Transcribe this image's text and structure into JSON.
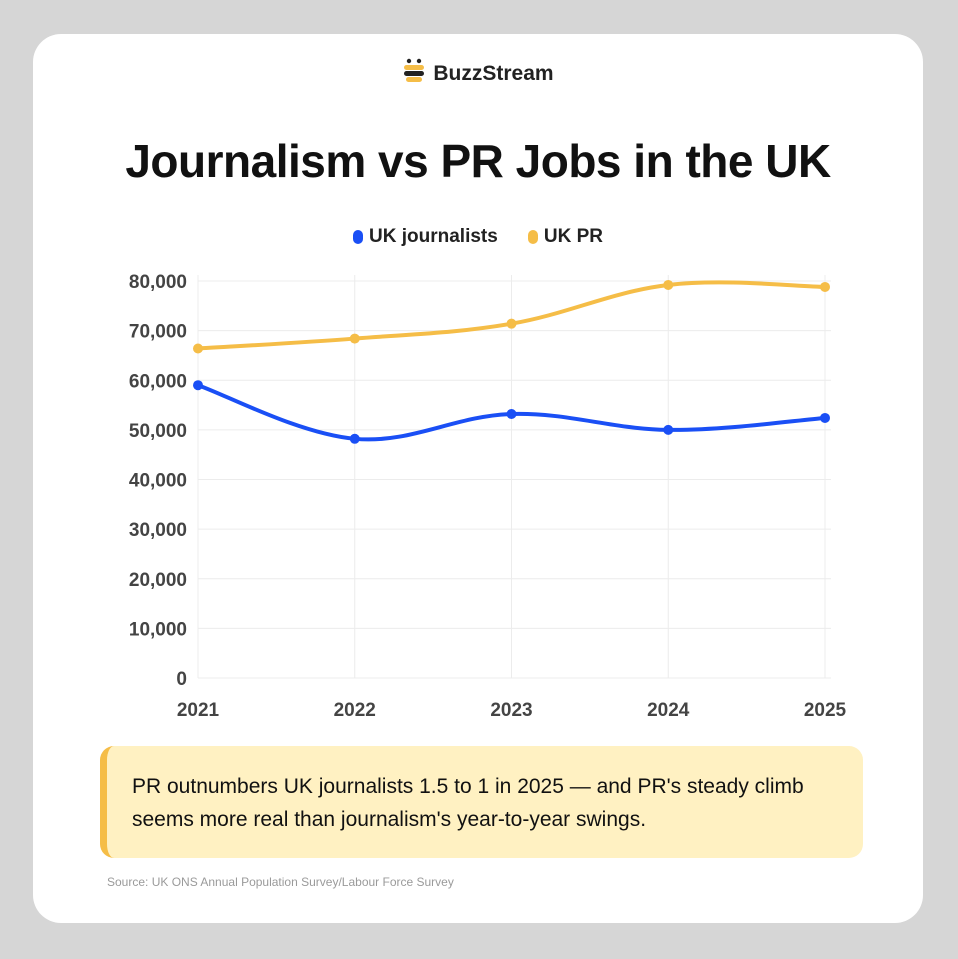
{
  "brand": {
    "name": "BuzzStream",
    "logo_icon": "bee-icon"
  },
  "chart_data": {
    "type": "line",
    "title": "Journalism vs PR Jobs in the UK",
    "categories": [
      "2021",
      "2022",
      "2023",
      "2024",
      "2025"
    ],
    "series": [
      {
        "name": "UK journalists",
        "color": "#1a4ff5",
        "values": [
          59000,
          48200,
          53200,
          50000,
          52400
        ]
      },
      {
        "name": "UK PR",
        "color": "#f5bd47",
        "values": [
          66400,
          68400,
          71400,
          79200,
          78800
        ]
      }
    ],
    "ylim": [
      0,
      80000
    ],
    "yticks": [
      0,
      10000,
      20000,
      30000,
      40000,
      50000,
      60000,
      70000,
      80000
    ],
    "ytick_labels": [
      "0",
      "10,000",
      "20,000",
      "30,000",
      "40,000",
      "50,000",
      "60,000",
      "70,000",
      "80,000"
    ],
    "legend": "top-center",
    "grid": true,
    "xlabel": "",
    "ylabel": ""
  },
  "callout": {
    "text": "PR outnumbers UK journalists 1.5 to 1 in 2025 — and PR's steady climb seems more real than journalism's year-to-year swings."
  },
  "source": "Source: UK ONS Annual Population Survey/Labour Force Survey"
}
